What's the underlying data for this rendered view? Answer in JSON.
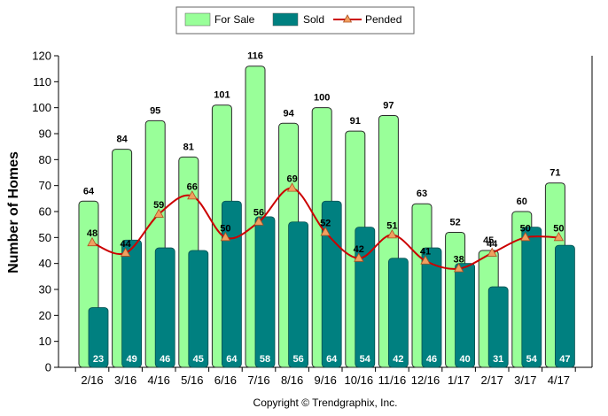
{
  "chart_data": {
    "type": "bar",
    "categories": [
      "2/16",
      "3/16",
      "4/16",
      "5/16",
      "6/16",
      "7/16",
      "8/16",
      "9/16",
      "10/16",
      "11/16",
      "12/16",
      "1/17",
      "2/17",
      "3/17",
      "4/17"
    ],
    "series": [
      {
        "name": "For Sale",
        "type": "bar",
        "color": "#99ff99",
        "values": [
          64,
          84,
          95,
          81,
          101,
          116,
          94,
          100,
          91,
          97,
          63,
          52,
          45,
          60,
          71
        ]
      },
      {
        "name": "Sold",
        "type": "bar",
        "color": "#008080",
        "values": [
          23,
          49,
          46,
          45,
          64,
          58,
          56,
          64,
          54,
          42,
          46,
          40,
          31,
          54,
          47
        ]
      },
      {
        "name": "Pended",
        "type": "line",
        "color": "#cc0000",
        "values": [
          48,
          44,
          59,
          66,
          50,
          56,
          69,
          52,
          42,
          51,
          41,
          38,
          44,
          50,
          50
        ]
      }
    ],
    "ylabel": "Number of Homes",
    "ylim": [
      0,
      120
    ],
    "yticks": [
      0,
      10,
      20,
      30,
      40,
      50,
      60,
      70,
      80,
      90,
      100,
      110,
      120
    ],
    "legend_position": "top-center",
    "grid": false
  },
  "footer": {
    "copyright": "Copyright © Trendgraphix, Inc."
  }
}
